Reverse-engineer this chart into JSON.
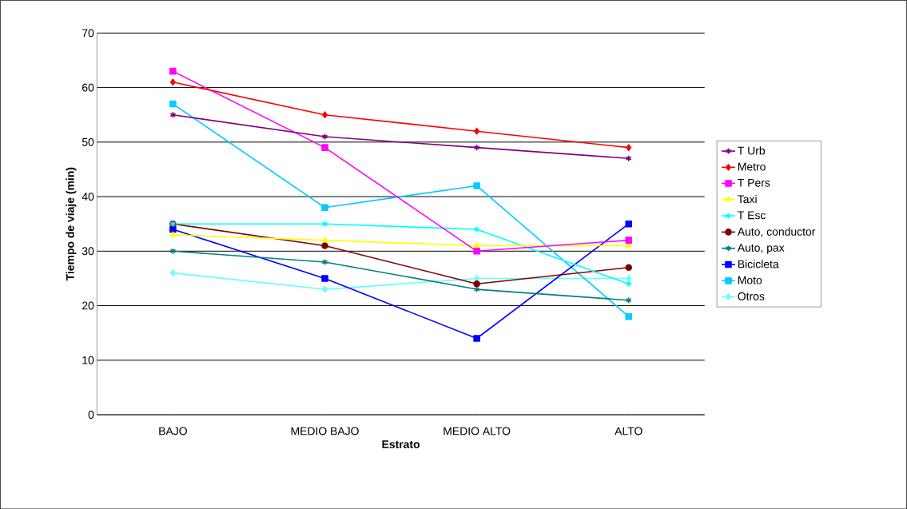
{
  "chart_data": {
    "type": "line",
    "xlabel": "Estrato",
    "ylabel": "Tiempo de viaje (min)",
    "categories": [
      "BAJO",
      "MEDIO BAJO",
      "MEDIO ALTO",
      "ALTO"
    ],
    "series": [
      {
        "name": "T Urb",
        "color": "#800080",
        "marker": "cross",
        "values": [
          55,
          51,
          49,
          47
        ]
      },
      {
        "name": "Metro",
        "color": "#ff0000",
        "marker": "diamond",
        "values": [
          61,
          55,
          52,
          49
        ]
      },
      {
        "name": "T Pers",
        "color": "#ff00ff",
        "marker": "square",
        "values": [
          63,
          49,
          30,
          32
        ]
      },
      {
        "name": "Taxi",
        "color": "#ffff00",
        "marker": "triangle",
        "values": [
          33,
          32,
          31,
          31
        ]
      },
      {
        "name": "T Esc",
        "color": "#00ffff",
        "marker": "cross",
        "values": [
          35,
          35,
          34,
          24
        ]
      },
      {
        "name": "Auto, conductor",
        "color": "#800000",
        "marker": "circle",
        "values": [
          35,
          31,
          24,
          27
        ]
      },
      {
        "name": "Auto, pax",
        "color": "#008080",
        "marker": "cross",
        "values": [
          30,
          28,
          23,
          21
        ]
      },
      {
        "name": "Bicicleta",
        "color": "#0000ff",
        "marker": "square",
        "values": [
          34,
          25,
          14,
          35
        ]
      },
      {
        "name": "Moto",
        "color": "#00ccff",
        "marker": "square",
        "values": [
          57,
          38,
          42,
          18
        ]
      },
      {
        "name": "Otros",
        "color": "#66ffff",
        "marker": "diamond",
        "values": [
          26,
          23,
          25,
          25
        ]
      }
    ],
    "ylim": [
      0,
      70
    ],
    "yticks": [
      0,
      10,
      20,
      30,
      40,
      50,
      60,
      70
    ],
    "grid": "y",
    "legend": "right"
  }
}
